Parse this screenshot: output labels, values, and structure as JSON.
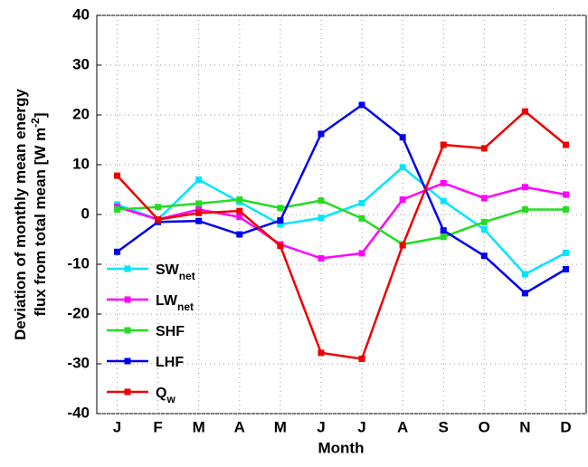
{
  "chart_data": {
    "type": "line",
    "xlabel": "Month",
    "ylabel": [
      "Deviation of monthly mean energy",
      "flux from total mean [W m"
    ],
    "ylabel_superscript": "-2",
    "ylabel_end": "]",
    "categories": [
      "J",
      "F",
      "M",
      "A",
      "M",
      "J",
      "J",
      "A",
      "S",
      "O",
      "N",
      "D"
    ],
    "series": [
      {
        "name": "SW",
        "subscript": "net",
        "color": "#00e5ff",
        "values": [
          2,
          -1,
          7,
          2.5,
          -2,
          -0.7,
          2.3,
          9.5,
          2.7,
          -3,
          -12,
          -7.7
        ]
      },
      {
        "name": "LW",
        "subscript": "net",
        "color": "#ff00ff",
        "values": [
          1.5,
          -1,
          1,
          -0.5,
          -6,
          -8.8,
          -7.8,
          3,
          6.3,
          3.3,
          5.5,
          4
        ]
      },
      {
        "name": "SHF",
        "color": "#22dd22",
        "values": [
          1,
          1.5,
          2.2,
          3,
          1.3,
          2.8,
          -0.8,
          -6,
          -4.5,
          -1.5,
          1,
          1
        ]
      },
      {
        "name": "LHF",
        "color": "#0000ee",
        "values": [
          -7.5,
          -1.5,
          -1.3,
          -4,
          -1.2,
          16.2,
          22,
          15.5,
          -3.2,
          -8.3,
          -15.8,
          -11
        ]
      },
      {
        "name": "Q",
        "subscript": "w",
        "color": "#ee0000",
        "values": [
          7.8,
          -1,
          0.3,
          0.7,
          -6.3,
          -27.8,
          -29,
          -6.2,
          14,
          13.3,
          20.7,
          14
        ]
      }
    ],
    "ylim": [
      -40,
      40
    ],
    "yticks": [
      -40,
      -30,
      -20,
      -10,
      0,
      10,
      20,
      30,
      40
    ],
    "grid": true,
    "legend": "lower left"
  }
}
